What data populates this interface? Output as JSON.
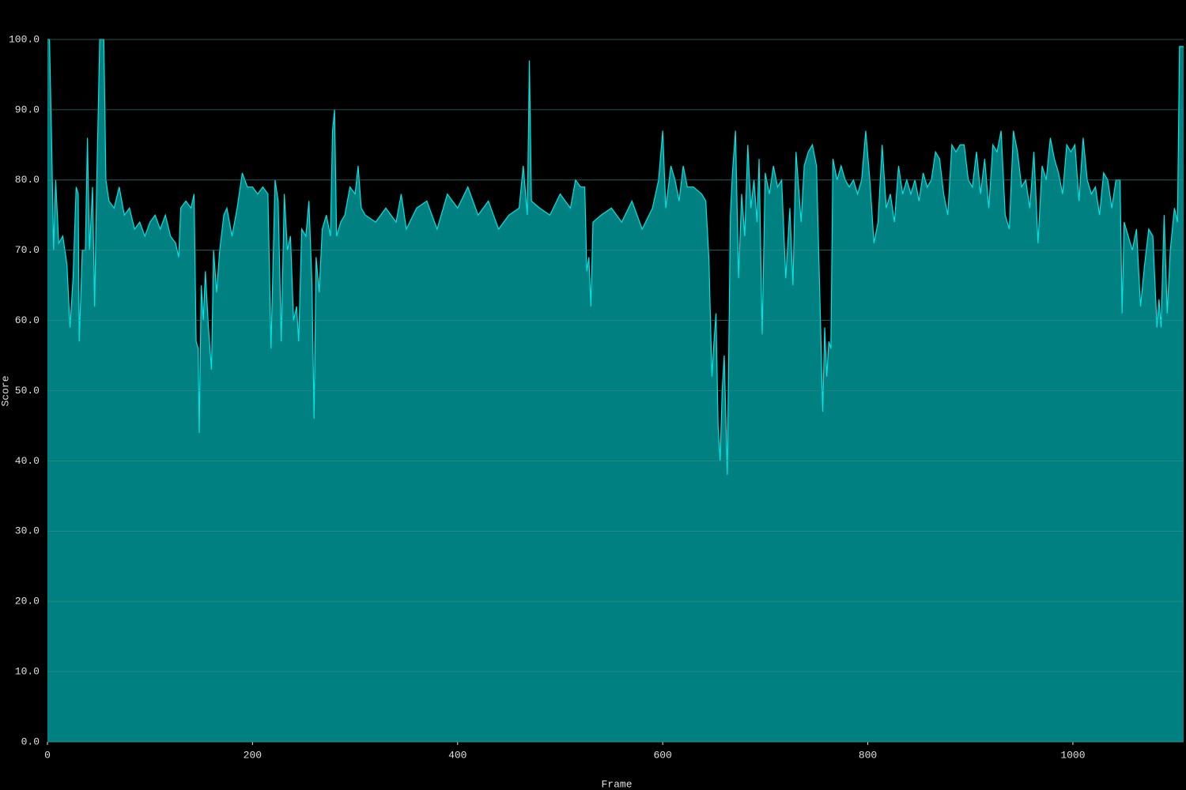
{
  "chart_data": {
    "type": "area",
    "xlabel": "Frame",
    "ylabel": "Score",
    "xlim": [
      0,
      1108
    ],
    "ylim": [
      0,
      100
    ],
    "xticks": [
      0,
      200,
      400,
      600,
      800,
      1000
    ],
    "yticks": [
      {
        "value": 0,
        "label": "0.0"
      },
      {
        "value": 10,
        "label": "10.0"
      },
      {
        "value": 20,
        "label": "20.0"
      },
      {
        "value": 30,
        "label": "30.0"
      },
      {
        "value": 40,
        "label": "40.0"
      },
      {
        "value": 50,
        "label": "50.0"
      },
      {
        "value": 60,
        "label": "60.0"
      },
      {
        "value": 70,
        "label": "70.0"
      },
      {
        "value": 80,
        "label": "80.0"
      },
      {
        "value": 90,
        "label": "90.0"
      },
      {
        "value": 100,
        "label": "100.0"
      }
    ],
    "grid": true,
    "color": "#008080",
    "line_color": "#00e5e5",
    "x": [
      0,
      2,
      4,
      6,
      8,
      11,
      15,
      19,
      22,
      25,
      28,
      30,
      31,
      34,
      37,
      39,
      41,
      44,
      46,
      48,
      51,
      55,
      57,
      60,
      65,
      70,
      75,
      80,
      85,
      90,
      95,
      100,
      105,
      110,
      115,
      120,
      125,
      128,
      130,
      135,
      140,
      143,
      145,
      147,
      148,
      150,
      152,
      154,
      157,
      160,
      162,
      165,
      168,
      172,
      175,
      180,
      185,
      190,
      195,
      200,
      205,
      210,
      215,
      218,
      222,
      225,
      228,
      231,
      234,
      237,
      240,
      243,
      245,
      248,
      252,
      255,
      258,
      260,
      262,
      265,
      268,
      272,
      276,
      278,
      280,
      282,
      286,
      290,
      295,
      300,
      303,
      306,
      310,
      320,
      330,
      340,
      345,
      350,
      360,
      370,
      380,
      390,
      400,
      410,
      420,
      430,
      440,
      450,
      460,
      464,
      468,
      470,
      472,
      480,
      490,
      500,
      510,
      515,
      520,
      524,
      526,
      528,
      530,
      532,
      540,
      550,
      560,
      570,
      580,
      590,
      596,
      600,
      603,
      608,
      612,
      616,
      620,
      624,
      630,
      638,
      642,
      645,
      648,
      650,
      652,
      654,
      656,
      658,
      660,
      663,
      666,
      668,
      671,
      674,
      677,
      680,
      683,
      686,
      689,
      692,
      694,
      697,
      700,
      704,
      708,
      712,
      716,
      720,
      724,
      727,
      730,
      735,
      738,
      742,
      746,
      750,
      754,
      756,
      758,
      760,
      762,
      764,
      766,
      770,
      774,
      778,
      782,
      786,
      790,
      794,
      798,
      802,
      806,
      810,
      814,
      818,
      822,
      826,
      830,
      834,
      838,
      842,
      846,
      850,
      854,
      858,
      862,
      866,
      870,
      874,
      878,
      882,
      886,
      890,
      894,
      898,
      902,
      906,
      910,
      914,
      918,
      922,
      926,
      930,
      934,
      938,
      942,
      946,
      950,
      954,
      958,
      962,
      966,
      970,
      974,
      978,
      982,
      986,
      990,
      994,
      998,
      1002,
      1006,
      1010,
      1014,
      1018,
      1022,
      1026,
      1030,
      1034,
      1038,
      1042,
      1046,
      1048,
      1050,
      1054,
      1058,
      1062,
      1066,
      1070,
      1074,
      1078,
      1082,
      1084,
      1086,
      1089,
      1092,
      1095,
      1099,
      1102,
      1104,
      1108
    ],
    "y": [
      100,
      100,
      86,
      70,
      80,
      71,
      72,
      68,
      59,
      66,
      79,
      78,
      57,
      70,
      70,
      86,
      70,
      79,
      62,
      79,
      100,
      100,
      80,
      77,
      76,
      79,
      75,
      76,
      73,
      74,
      72,
      74,
      75,
      73,
      75,
      72,
      71,
      69,
      76,
      77,
      76,
      78,
      57,
      56,
      44,
      65,
      60,
      67,
      59,
      53,
      70,
      64,
      70,
      75,
      76,
      72,
      76,
      81,
      79,
      79,
      78,
      79,
      78,
      56,
      80,
      77,
      57,
      78,
      70,
      72,
      60,
      62,
      57,
      73,
      72,
      77,
      65,
      46,
      69,
      64,
      73,
      75,
      72,
      87,
      90,
      72,
      74,
      75,
      79,
      78,
      82,
      76,
      75,
      74,
      76,
      74,
      78,
      73,
      76,
      77,
      73,
      78,
      76,
      79,
      75,
      77,
      73,
      75,
      76,
      82,
      75,
      97,
      77,
      76,
      75,
      78,
      76,
      80,
      79,
      79,
      67,
      69,
      62,
      74,
      75,
      76,
      74,
      77,
      73,
      76,
      80,
      87,
      76,
      82,
      80,
      77,
      82,
      79,
      79,
      78,
      77,
      69,
      52,
      57,
      61,
      45,
      40,
      50,
      55,
      38,
      75,
      81,
      87,
      66,
      78,
      72,
      85,
      76,
      80,
      74,
      83,
      58,
      81,
      78,
      82,
      79,
      80,
      66,
      76,
      65,
      84,
      74,
      82,
      84,
      85,
      82,
      59,
      47,
      59,
      52,
      57,
      56,
      83,
      80,
      82,
      80,
      79,
      80,
      78,
      80,
      87,
      80,
      71,
      74,
      85,
      76,
      78,
      74,
      82,
      78,
      80,
      78,
      80,
      77,
      81,
      79,
      80,
      84,
      83,
      78,
      75,
      85,
      84,
      85,
      85,
      80,
      79,
      84,
      78,
      83,
      76,
      85,
      84,
      87,
      75,
      73,
      87,
      84,
      79,
      80,
      76,
      84,
      71,
      82,
      80,
      86,
      83,
      81,
      78,
      85,
      84,
      85,
      77,
      86,
      80,
      78,
      79,
      75,
      81,
      80,
      76,
      80,
      80,
      61,
      74,
      72,
      70,
      73,
      62,
      68,
      73,
      72,
      59,
      63,
      59,
      75,
      61,
      70,
      76,
      74,
      99,
      99
    ]
  }
}
